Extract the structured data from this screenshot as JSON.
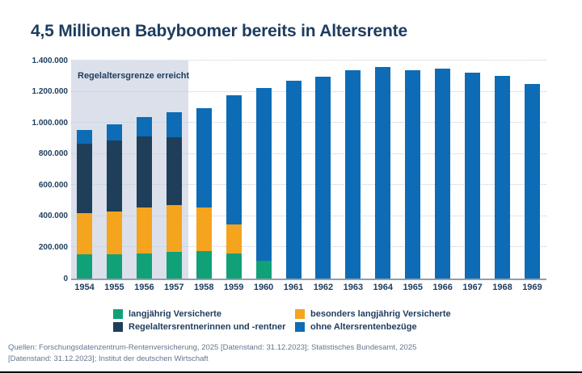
{
  "title": "4,5 Millionen Babyboomer bereits in Altersrente",
  "chart_data": {
    "type": "bar",
    "stacked": true,
    "title": "4,5 Millionen Babyboomer bereits in Altersrente",
    "categories": [
      "1954",
      "1955",
      "1956",
      "1957",
      "1958",
      "1959",
      "1960",
      "1961",
      "1962",
      "1963",
      "1964",
      "1965",
      "1966",
      "1967",
      "1968",
      "1969"
    ],
    "series": [
      {
        "name": "langjährig Versicherte",
        "color": "#10a178",
        "values": [
          155000,
          155000,
          160000,
          170000,
          175000,
          160000,
          115000,
          0,
          0,
          0,
          0,
          0,
          0,
          0,
          0,
          0
        ]
      },
      {
        "name": "besonders langjährig Versicherte",
        "color": "#f5a41d",
        "values": [
          265000,
          275000,
          295000,
          300000,
          280000,
          190000,
          0,
          0,
          0,
          0,
          0,
          0,
          0,
          0,
          0,
          0
        ]
      },
      {
        "name": "Regelaltersrentnerinnen und -rentner",
        "color": "#1f3e5a",
        "values": [
          445000,
          455000,
          460000,
          440000,
          0,
          0,
          0,
          0,
          0,
          0,
          0,
          0,
          0,
          0,
          0,
          0
        ]
      },
      {
        "name": "ohne Altersrentenbezüge",
        "color": "#0d6cb5",
        "values": [
          90000,
          105000,
          120000,
          160000,
          640000,
          825000,
          1110000,
          1270000,
          1295000,
          1340000,
          1360000,
          1340000,
          1350000,
          1320000,
          1300000,
          1250000
        ]
      }
    ],
    "totals": [
      955000,
      990000,
      1035000,
      1070000,
      1095000,
      1175000,
      1225000,
      1270000,
      1295000,
      1340000,
      1360000,
      1340000,
      1350000,
      1320000,
      1300000,
      1250000
    ],
    "ylim": [
      0,
      1400000
    ],
    "y_ticks": [
      {
        "label": "0",
        "value": 0
      },
      {
        "label": "200.000",
        "value": 200000
      },
      {
        "label": "400.000",
        "value": 400000
      },
      {
        "label": "600.000",
        "value": 600000
      },
      {
        "label": "800.000",
        "value": 800000
      },
      {
        "label": "1.000.000",
        "value": 1000000
      },
      {
        "label": "1.200.000",
        "value": 1200000
      },
      {
        "label": "1.400.000",
        "value": 1400000
      }
    ],
    "grid": "horizontal-dotted",
    "legend_position": "bottom",
    "annotation": {
      "label": "Regelaltersgrenze erreicht",
      "covers_categories": [
        "1954",
        "1955",
        "1956",
        "1957"
      ]
    }
  },
  "footer": {
    "line1": "Quellen: Forschungsdatenzentrum-Rentenversicherung, 2025 [Datenstand: 31.12.2023]; Statistisches Bundesamt, 2025",
    "line2": "[Datenstand: 31.12.2023];  Institut der deutschen Wirtschaft"
  }
}
